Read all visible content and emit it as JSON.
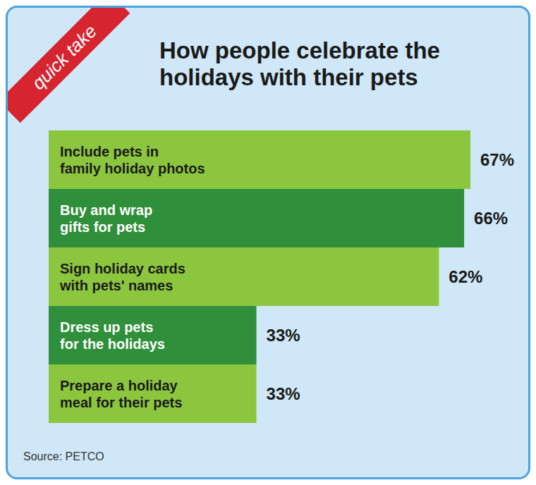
{
  "chart_data": {
    "type": "bar",
    "title": "How people celebrate the holidays with their pets",
    "annotations": [
      "quick take",
      "Source: PETCO"
    ],
    "orientation": "horizontal",
    "categories": [
      "Include pets in family holiday photos",
      "Buy and wrap gifts for pets",
      "Sign holiday cards with pets' names",
      "Dress up pets for the holidays",
      "Prepare a holiday meal for their pets"
    ],
    "values": [
      67,
      66,
      62,
      33,
      33
    ],
    "value_labels": [
      "67%",
      "66%",
      "62%",
      "33%",
      "33%"
    ],
    "colors": [
      "#8cc63f",
      "#2f8f3a",
      "#8cc63f",
      "#2f8f3a",
      "#8cc63f"
    ],
    "data_labels": true,
    "tick_labels": false,
    "grid": false
  }
}
